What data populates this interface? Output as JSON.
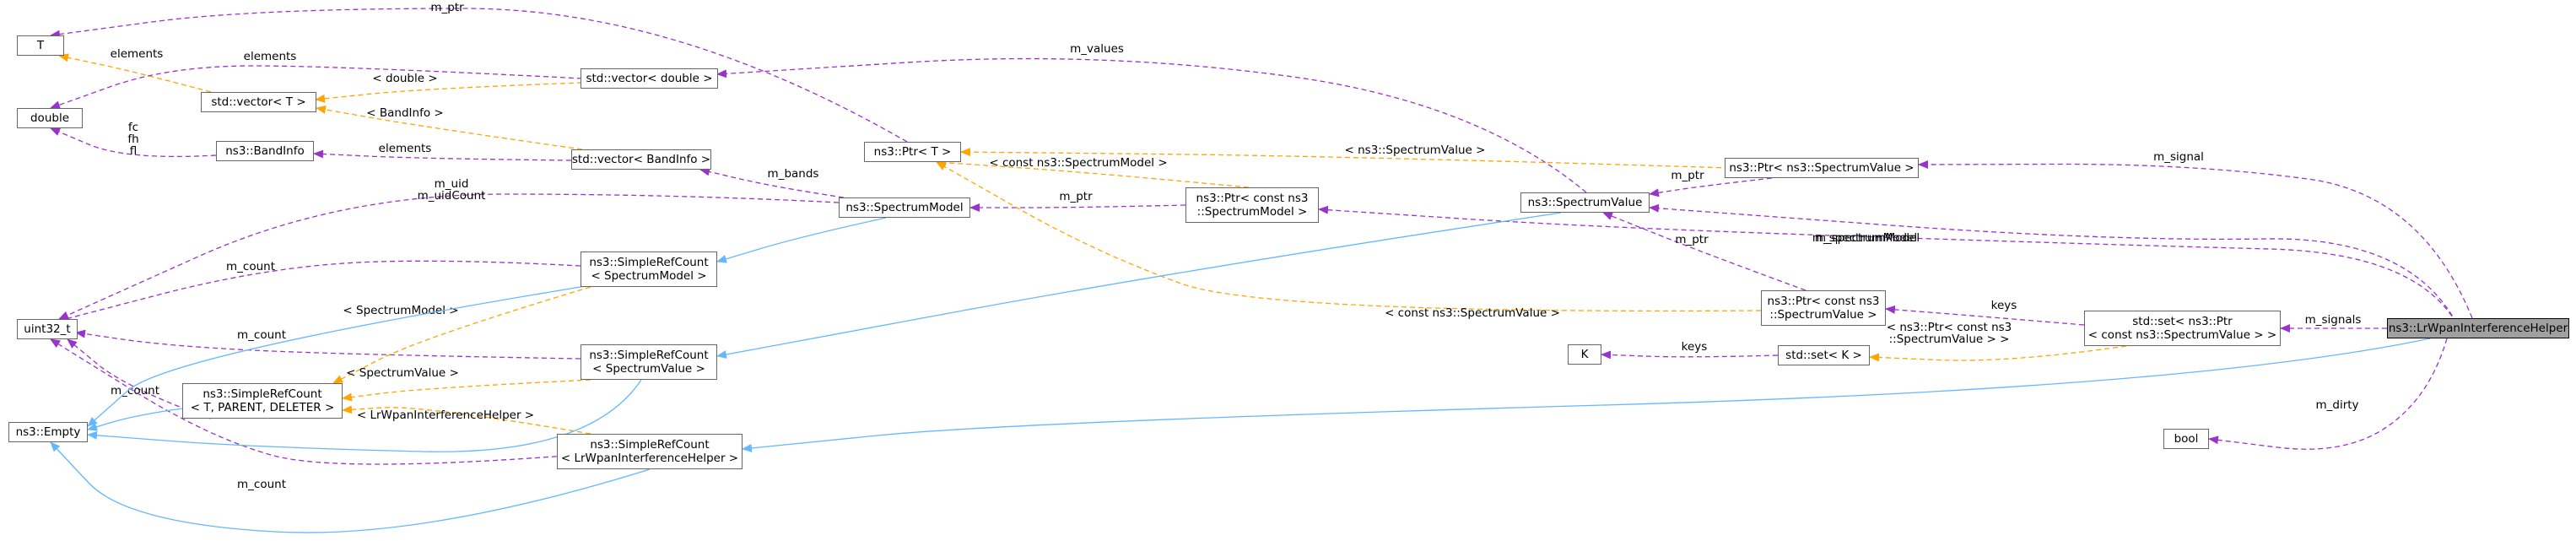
{
  "nodes": {
    "T": [
      "T"
    ],
    "double": [
      "double"
    ],
    "vectorT": [
      "std::vector< T >"
    ],
    "vectorDouble": [
      "std::vector< double >"
    ],
    "bandInfo": [
      "ns3::BandInfo"
    ],
    "vectorBandInfo": [
      "std::vector< BandInfo >"
    ],
    "ptrT": [
      "ns3::Ptr< T >"
    ],
    "spectrumModel": [
      "ns3::SpectrumModel"
    ],
    "ptrConstSpectrumModel": [
      "ns3::Ptr< const ns3",
      "::SpectrumModel >"
    ],
    "spectrumValue": [
      "ns3::SpectrumValue"
    ],
    "ptrSpectrumValue": [
      "ns3::Ptr< ns3::SpectrumValue >"
    ],
    "uint32": [
      "uint32_t"
    ],
    "srcSpectrumModel": [
      "ns3::SimpleRefCount",
      "< SpectrumModel >"
    ],
    "srcSpectrumValue": [
      "ns3::SimpleRefCount",
      "< SpectrumValue >"
    ],
    "srcGeneric": [
      "ns3::SimpleRefCount",
      "< T, PARENT, DELETER >"
    ],
    "empty": [
      "ns3::Empty"
    ],
    "srcHelper": [
      "ns3::SimpleRefCount",
      "< LrWpanInterferenceHelper >"
    ],
    "ptrConstSpectrumValue": [
      "ns3::Ptr< const ns3",
      "::SpectrumValue >"
    ],
    "K": [
      "K"
    ],
    "setK": [
      "std::set< K >"
    ],
    "setPtr": [
      "std::set< ns3::Ptr",
      "< const ns3::SpectrumValue > >"
    ],
    "helper": [
      "ns3::LrWpanInterferenceHelper"
    ],
    "bool": [
      "bool"
    ]
  },
  "edges": [
    {
      "kind": "member",
      "label": [
        "m_ptr"
      ]
    },
    {
      "kind": "template",
      "label": [
        "elements"
      ]
    },
    {
      "kind": "member",
      "label": [
        "elements"
      ]
    },
    {
      "kind": "template",
      "label": [
        "< double >"
      ]
    },
    {
      "kind": "member",
      "label": [
        "m_values"
      ]
    },
    {
      "kind": "member",
      "label": [
        "fc",
        "fh",
        "fl"
      ]
    },
    {
      "kind": "template",
      "label": [
        "< BandInfo >"
      ]
    },
    {
      "kind": "member",
      "label": [
        "elements"
      ]
    },
    {
      "kind": "member",
      "label": [
        "m_bands"
      ]
    },
    {
      "kind": "member",
      "label": [
        "m_uid",
        "m_uidCount"
      ]
    },
    {
      "kind": "member",
      "label": [
        "m_count"
      ]
    },
    {
      "kind": "member",
      "label": [
        "m_count"
      ]
    },
    {
      "kind": "member",
      "label": [
        "m_count"
      ]
    },
    {
      "kind": "member",
      "label": [
        "m_count"
      ]
    },
    {
      "kind": "member",
      "label": [
        "m_ptr"
      ]
    },
    {
      "kind": "member",
      "label": [
        "m_spectrumModel"
      ]
    },
    {
      "kind": "member",
      "label": [
        "m_ptr"
      ]
    },
    {
      "kind": "member",
      "label": [
        "m_ptr"
      ]
    },
    {
      "kind": "template",
      "label": [
        "< const ns3::SpectrumModel >"
      ]
    },
    {
      "kind": "template",
      "label": [
        "< ns3::SpectrumValue >"
      ]
    },
    {
      "kind": "template",
      "label": [
        "< const ns3::SpectrumValue >"
      ]
    },
    {
      "kind": "template",
      "label": [
        "< SpectrumModel >"
      ]
    },
    {
      "kind": "template",
      "label": [
        "< SpectrumValue >"
      ]
    },
    {
      "kind": "template",
      "label": [
        "< LrWpanInterferenceHelper >"
      ]
    },
    {
      "kind": "inherit",
      "label": []
    },
    {
      "kind": "inherit",
      "label": []
    },
    {
      "kind": "inherit",
      "label": []
    },
    {
      "kind": "inherit",
      "label": []
    },
    {
      "kind": "inherit",
      "label": []
    },
    {
      "kind": "inherit",
      "label": []
    },
    {
      "kind": "inherit",
      "label": []
    },
    {
      "kind": "member",
      "label": [
        "m_signal"
      ]
    },
    {
      "kind": "member",
      "label": [
        "m_spectrumModel"
      ]
    },
    {
      "kind": "member",
      "label": [
        "keys"
      ]
    },
    {
      "kind": "template",
      "label": [
        "< ns3::Ptr< const ns3",
        "::SpectrumValue > >"
      ]
    },
    {
      "kind": "member",
      "label": [
        "keys"
      ]
    },
    {
      "kind": "member",
      "label": [
        "m_signals"
      ]
    },
    {
      "kind": "member",
      "label": [
        "m_dirty"
      ]
    }
  ],
  "colors": {
    "member": "#9a32cd",
    "template": "#ffa500",
    "inherit": "#63b8ff",
    "node_border": "#666666",
    "focus_fill": "#a0a0a0"
  }
}
